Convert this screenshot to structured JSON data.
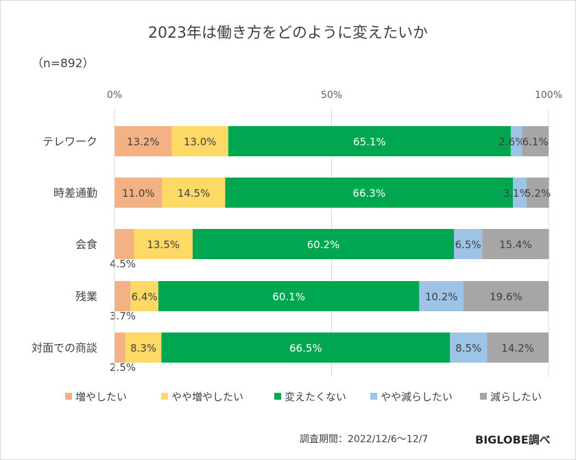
{
  "header": {
    "title": "2023年は働き方をどのように変えたいか",
    "sample": "（n=892）"
  },
  "footer": {
    "survey_period": "調査期間：2022/12/6～12/7",
    "source": "BIGLOBE調べ"
  },
  "chart_data": {
    "type": "bar",
    "orientation": "horizontal",
    "stacked": "percent",
    "title": "2023年は働き方をどのように変えたいか",
    "xlim": [
      0,
      100
    ],
    "x_tick_labels": [
      "0%",
      "50%",
      "100%"
    ],
    "grid": true,
    "legend_position": "bottom",
    "categories": [
      "テレワーク",
      "時差通勤",
      "会食",
      "残業",
      "対面での商談"
    ],
    "series": [
      {
        "name": "増やしたい",
        "color": "#f4b183",
        "values": [
          13.2,
          11.0,
          4.5,
          3.7,
          2.5
        ],
        "labels": [
          "13.2%",
          "11.0%",
          "4.5%",
          "3.7%",
          "2.5%"
        ]
      },
      {
        "name": "やや増やしたい",
        "color": "#ffd966",
        "values": [
          13.0,
          14.5,
          13.5,
          6.4,
          8.3
        ],
        "labels": [
          "13.0%",
          "14.5%",
          "13.5%",
          "6.4%",
          "8.3%"
        ]
      },
      {
        "name": "変えたくない",
        "color": "#00a650",
        "values": [
          65.1,
          66.3,
          60.2,
          60.1,
          66.5
        ],
        "labels": [
          "65.1%",
          "66.3%",
          "60.2%",
          "60.1%",
          "66.5%"
        ]
      },
      {
        "name": "やや減らしたい",
        "color": "#9dc3e6",
        "values": [
          2.6,
          3.1,
          6.5,
          10.2,
          8.5
        ],
        "labels": [
          "2.6%",
          "3.1%",
          "6.5%",
          "10.2%",
          "8.5%"
        ]
      },
      {
        "name": "減らしたい",
        "color": "#a6a6a6",
        "values": [
          6.1,
          5.2,
          15.4,
          19.6,
          14.2
        ],
        "labels": [
          "6.1%",
          "5.2%",
          "15.4%",
          "19.6%",
          "14.2%"
        ]
      }
    ]
  }
}
